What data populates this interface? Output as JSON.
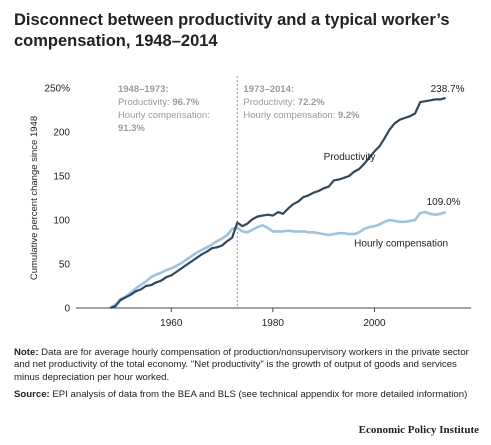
{
  "title": "Disconnect between productivity and a typical worker’s compensation, 1948–2014",
  "chart_data": {
    "type": "line",
    "ylabel": "Cumulative percent change since 1948",
    "ylim": [
      0,
      250
    ],
    "xlim": [
      1944,
      2019
    ],
    "yticks": [
      "250%",
      "200",
      "150",
      "100",
      "50",
      "0"
    ],
    "xticks": [
      "1960",
      "1980",
      "2000"
    ],
    "grid": false,
    "divider_year": 1973,
    "series": [
      {
        "name": "Productivity",
        "color": "#33475b",
        "end_label": "238.7%",
        "points": [
          [
            1948,
            0
          ],
          [
            1949,
            2
          ],
          [
            1950,
            9
          ],
          [
            1951,
            12
          ],
          [
            1952,
            15
          ],
          [
            1953,
            19
          ],
          [
            1954,
            21
          ],
          [
            1955,
            25
          ],
          [
            1956,
            26
          ],
          [
            1957,
            29
          ],
          [
            1958,
            31
          ],
          [
            1959,
            35
          ],
          [
            1960,
            37
          ],
          [
            1961,
            41
          ],
          [
            1962,
            45
          ],
          [
            1963,
            49
          ],
          [
            1964,
            53
          ],
          [
            1965,
            57
          ],
          [
            1966,
            61
          ],
          [
            1967,
            64
          ],
          [
            1968,
            68
          ],
          [
            1969,
            69
          ],
          [
            1970,
            71
          ],
          [
            1971,
            76
          ],
          [
            1972,
            80
          ],
          [
            1973,
            97
          ],
          [
            1974,
            93
          ],
          [
            1975,
            96
          ],
          [
            1976,
            101
          ],
          [
            1977,
            104
          ],
          [
            1978,
            105
          ],
          [
            1979,
            106
          ],
          [
            1980,
            105
          ],
          [
            1981,
            109
          ],
          [
            1982,
            107
          ],
          [
            1983,
            113
          ],
          [
            1984,
            118
          ],
          [
            1985,
            121
          ],
          [
            1986,
            126
          ],
          [
            1987,
            128
          ],
          [
            1988,
            131
          ],
          [
            1989,
            133
          ],
          [
            1990,
            136
          ],
          [
            1991,
            138
          ],
          [
            1992,
            145
          ],
          [
            1993,
            146
          ],
          [
            1994,
            148
          ],
          [
            1995,
            150
          ],
          [
            1996,
            155
          ],
          [
            1997,
            158
          ],
          [
            1998,
            164
          ],
          [
            1999,
            171
          ],
          [
            2000,
            178
          ],
          [
            2001,
            184
          ],
          [
            2002,
            193
          ],
          [
            2003,
            203
          ],
          [
            2004,
            210
          ],
          [
            2005,
            214
          ],
          [
            2006,
            216
          ],
          [
            2007,
            218
          ],
          [
            2008,
            221
          ],
          [
            2009,
            234
          ],
          [
            2010,
            235
          ],
          [
            2011,
            236
          ],
          [
            2012,
            237
          ],
          [
            2013,
            237
          ],
          [
            2014,
            238.7
          ]
        ]
      },
      {
        "name": "Hourly compensation",
        "color": "#9ec3df",
        "end_label": "109.0%",
        "points": [
          [
            1948,
            0
          ],
          [
            1949,
            4
          ],
          [
            1950,
            10
          ],
          [
            1951,
            13
          ],
          [
            1952,
            17
          ],
          [
            1953,
            22
          ],
          [
            1954,
            26
          ],
          [
            1955,
            30
          ],
          [
            1956,
            35
          ],
          [
            1957,
            38
          ],
          [
            1958,
            40
          ],
          [
            1959,
            43
          ],
          [
            1960,
            45
          ],
          [
            1961,
            48
          ],
          [
            1962,
            51
          ],
          [
            1963,
            55
          ],
          [
            1964,
            59
          ],
          [
            1965,
            63
          ],
          [
            1966,
            66
          ],
          [
            1967,
            69
          ],
          [
            1968,
            72
          ],
          [
            1969,
            76
          ],
          [
            1970,
            79
          ],
          [
            1971,
            83
          ],
          [
            1972,
            90
          ],
          [
            1973,
            91.3
          ],
          [
            1974,
            87
          ],
          [
            1975,
            86
          ],
          [
            1976,
            89
          ],
          [
            1977,
            92
          ],
          [
            1978,
            94
          ],
          [
            1979,
            91
          ],
          [
            1980,
            87
          ],
          [
            1981,
            87
          ],
          [
            1982,
            87
          ],
          [
            1983,
            88
          ],
          [
            1984,
            87
          ],
          [
            1985,
            87
          ],
          [
            1986,
            87
          ],
          [
            1987,
            86
          ],
          [
            1988,
            86
          ],
          [
            1989,
            85
          ],
          [
            1990,
            84
          ],
          [
            1991,
            83
          ],
          [
            1992,
            84
          ],
          [
            1993,
            85
          ],
          [
            1994,
            85
          ],
          [
            1995,
            84
          ],
          [
            1996,
            84
          ],
          [
            1997,
            86
          ],
          [
            1998,
            90
          ],
          [
            1999,
            92
          ],
          [
            2000,
            93
          ],
          [
            2001,
            95
          ],
          [
            2002,
            98
          ],
          [
            2003,
            100
          ],
          [
            2004,
            99
          ],
          [
            2005,
            98
          ],
          [
            2006,
            98
          ],
          [
            2007,
            99
          ],
          [
            2008,
            100
          ],
          [
            2009,
            108
          ],
          [
            2010,
            109
          ],
          [
            2011,
            107
          ],
          [
            2012,
            106
          ],
          [
            2013,
            107
          ],
          [
            2014,
            109
          ]
        ]
      }
    ],
    "annotations": [
      {
        "period": "1948–1973:",
        "line1_label": "Productivity: ",
        "line1_value": "96.7%",
        "line2_label": "Hourly compensation:",
        "line2_value": "91.3%"
      },
      {
        "period": "1973–2014:",
        "line1_label": "Productivity: ",
        "line1_value": "72.2%",
        "line2_label": "Hourly compensation: ",
        "line2_value": "9.2%"
      }
    ]
  },
  "notes": {
    "note_label": "Note:",
    "note_text": " Data are for average hourly compensation of production/nonsupervisory workers in the private sector and net productivity of the total economy. \"Net productivity\" is the growth of output of goods and services minus depreciation per hour worked.",
    "source_label": "Source:",
    "source_text": " EPI analysis of data from the BEA and BLS (see technical appendix for more detailed information)"
  },
  "footer": "Economic Policy Institute",
  "colors": {
    "annotation_gray": "#9a9a9a",
    "axis": "#444444"
  }
}
